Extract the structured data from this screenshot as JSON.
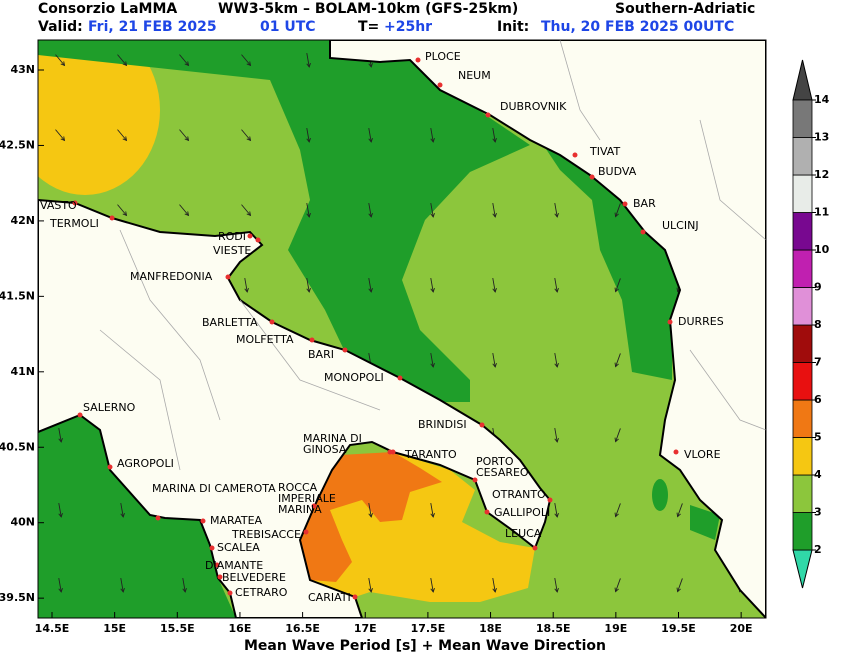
{
  "header": {
    "source": "Consorzio LaMMA",
    "models": "WW3-5km – BOLAM-10km (GFS-25km)",
    "region": "Southern-Adriatic",
    "valid_label": "Valid:",
    "valid_date": "Fri, 21 FEB 2025",
    "valid_time": "01 UTC",
    "lead_label": "T=",
    "lead_time": "+25hr",
    "init_label": "Init:",
    "init_date": "Thu, 20 FEB 2025 00UTC"
  },
  "map": {
    "lon_ticks": [
      {
        "value": 14.5,
        "label": "14.5E"
      },
      {
        "value": 15,
        "label": "15E"
      },
      {
        "value": 15.5,
        "label": "15.5E"
      },
      {
        "value": 16,
        "label": "16E"
      },
      {
        "value": 16.5,
        "label": "16.5E"
      },
      {
        "value": 17,
        "label": "17E"
      },
      {
        "value": 17.5,
        "label": "17.5E"
      },
      {
        "value": 18,
        "label": "18E"
      },
      {
        "value": 18.5,
        "label": "18.5E"
      },
      {
        "value": 19,
        "label": "19E"
      },
      {
        "value": 19.5,
        "label": "19.5E"
      },
      {
        "value": 20,
        "label": "20E"
      }
    ],
    "lat_ticks": [
      {
        "value": 43,
        "label": "43N"
      },
      {
        "value": 42.5,
        "label": "42.5N"
      },
      {
        "value": 42,
        "label": "42N"
      },
      {
        "value": 41.5,
        "label": "41.5N"
      },
      {
        "value": 41,
        "label": "41N"
      },
      {
        "value": 40.5,
        "label": "40.5N"
      },
      {
        "value": 40,
        "label": "40N"
      },
      {
        "value": 39.5,
        "label": "39.5N"
      }
    ],
    "cities": [
      {
        "label": [
          "PLOCE"
        ]
      },
      {
        "label": [
          "NEUM"
        ]
      },
      {
        "label": [
          "DUBROVNIK"
        ]
      },
      {
        "label": [
          "TIVAT"
        ]
      },
      {
        "label": [
          "BUDVA"
        ]
      },
      {
        "label": [
          "BAR"
        ]
      },
      {
        "label": [
          "ULCINJ"
        ]
      },
      {
        "label": [
          "DURRES"
        ]
      },
      {
        "label": [
          "VLORE"
        ]
      },
      {
        "label": [
          "VASTO"
        ]
      },
      {
        "label": [
          "TERMOLI"
        ]
      },
      {
        "label": [
          "RODI"
        ]
      },
      {
        "label": [
          "VIESTE"
        ]
      },
      {
        "label": [
          "MANFREDONIA"
        ]
      },
      {
        "label": [
          "BARLETTA"
        ]
      },
      {
        "label": [
          "MOLFETTA"
        ]
      },
      {
        "label": [
          "BARI"
        ]
      },
      {
        "label": [
          "MONOPOLI"
        ]
      },
      {
        "label": [
          "BRINDISI"
        ]
      },
      {
        "label": [
          "MARINA DI",
          "GINOSA"
        ]
      },
      {
        "label": [
          "TARANTO"
        ]
      },
      {
        "label": [
          "PORTO",
          "CESAREO"
        ]
      },
      {
        "label": [
          "OTRANTO"
        ]
      },
      {
        "label": [
          "GALLIPOLI"
        ]
      },
      {
        "label": [
          "LEUCA"
        ]
      },
      {
        "label": [
          "CARIATI"
        ]
      },
      {
        "label": [
          "SALERNO"
        ]
      },
      {
        "label": [
          "AGROPOLI"
        ]
      },
      {
        "label": [
          "MARINA DI CAMEROTA"
        ]
      },
      {
        "label": [
          "MARATEA"
        ]
      },
      {
        "label": [
          "ROCCA",
          "IMPERIALE",
          "MARINA"
        ]
      },
      {
        "label": [
          "TREBISACCE"
        ]
      },
      {
        "label": [
          "SCALEA"
        ]
      },
      {
        "label": [
          "DIAMANTE"
        ]
      },
      {
        "label": [
          "BELVEDERE"
        ]
      },
      {
        "label": [
          "CETRARO"
        ]
      }
    ],
    "caption": "Mean Wave Period [s] + Mean Wave Direction"
  },
  "legend": {
    "levels": [
      2,
      3,
      4,
      5,
      6,
      7,
      8,
      9,
      10,
      11,
      12,
      13,
      14
    ],
    "colors": [
      "#1f9e2a",
      "#8cc63c",
      "#f5c712",
      "#f07814",
      "#e81010",
      "#a00c0c",
      "#e090d8",
      "#c020b0",
      "#780890",
      "#e8ece8",
      "#b0b0b0",
      "#787878"
    ],
    "under_color": "#30d8a8",
    "over_color": "#444444"
  }
}
